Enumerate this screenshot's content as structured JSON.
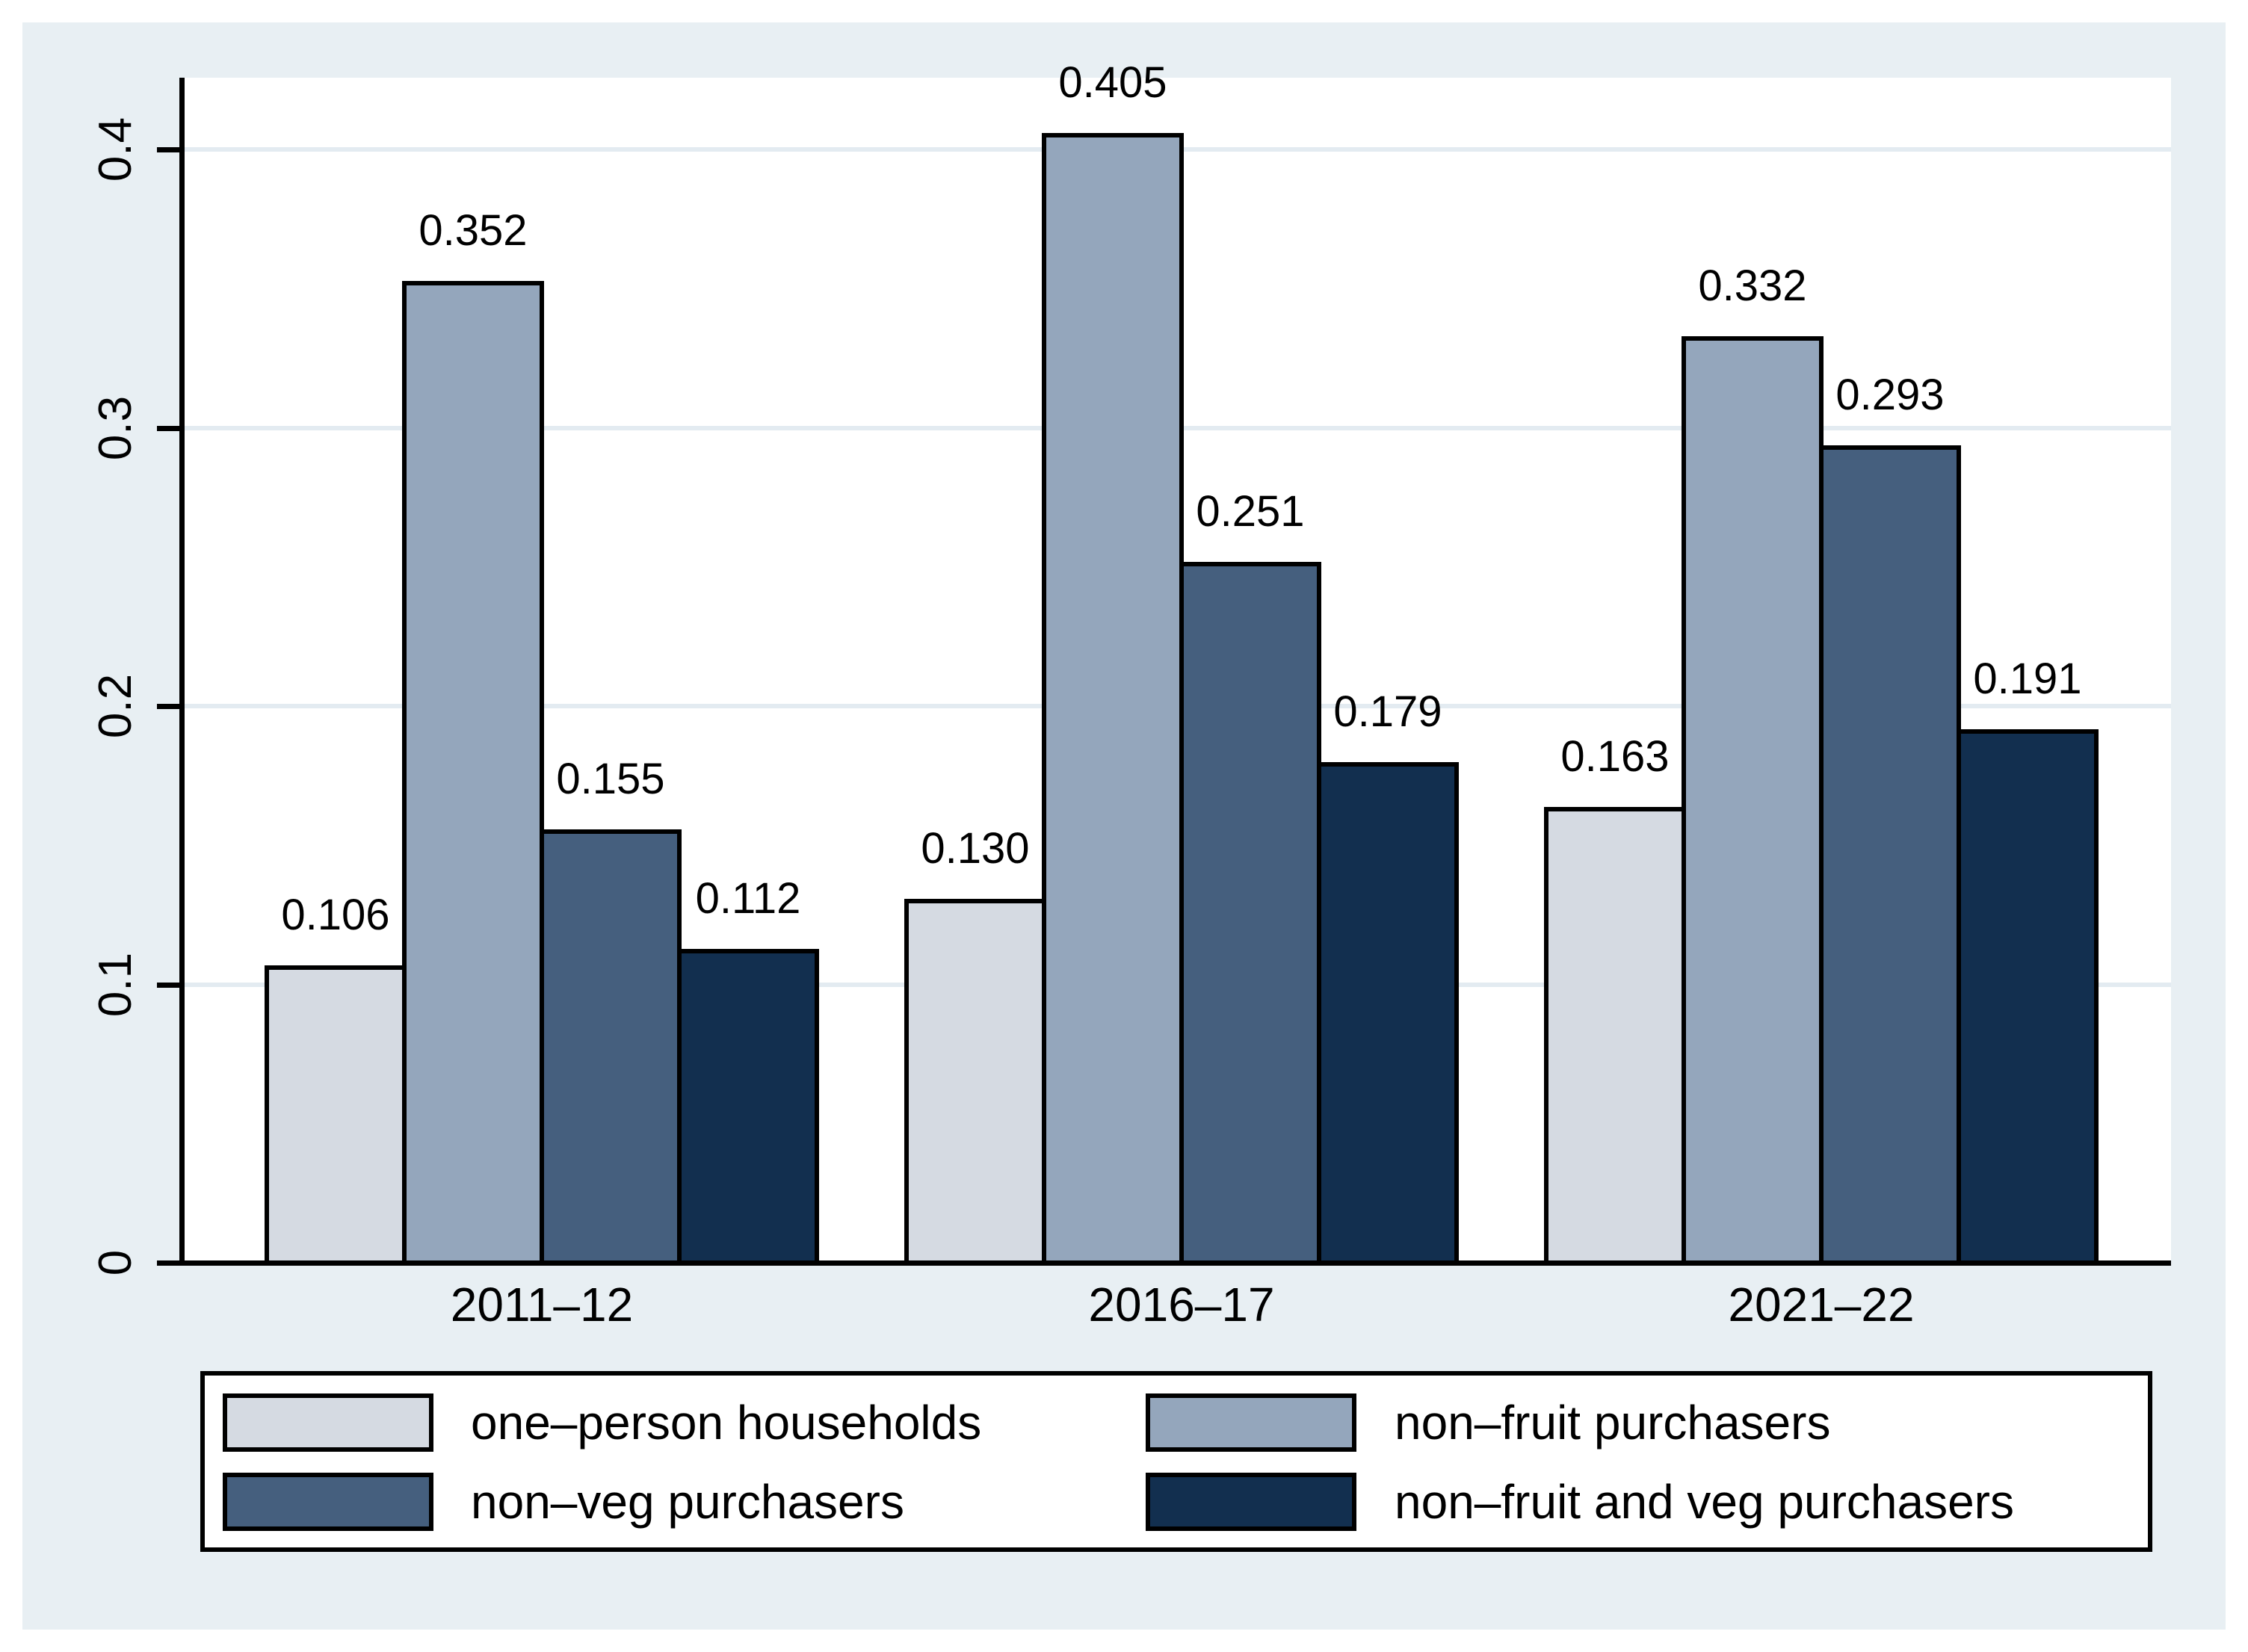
{
  "chart_data": {
    "type": "bar",
    "categories": [
      "2011–12",
      "2016–17",
      "2021–22"
    ],
    "series": [
      {
        "name": "one–person households",
        "color": "#d5dae2",
        "values": [
          0.106,
          0.13,
          0.163
        ]
      },
      {
        "name": "non–fruit purchasers",
        "color": "#94a6bc",
        "values": [
          0.352,
          0.405,
          0.332
        ]
      },
      {
        "name": "non–veg purchasers",
        "color": "#455f7e",
        "values": [
          0.155,
          0.251,
          0.293
        ]
      },
      {
        "name": "non–fruit and veg purchasers",
        "color": "#122f4f",
        "values": [
          0.112,
          0.179,
          0.191
        ]
      }
    ],
    "value_labels": [
      [
        "0.106",
        "0.352",
        "0.155",
        "0.112"
      ],
      [
        "0.130",
        "0.405",
        "0.251",
        "0.179"
      ],
      [
        "0.163",
        "0.332",
        "0.293",
        "0.191"
      ]
    ],
    "y_axis": {
      "tick_values": [
        0,
        0.1,
        0.2,
        0.3,
        0.4
      ],
      "tick_labels": [
        "0",
        "0.1",
        "0.2",
        "0.3",
        "0.4"
      ],
      "ylim": [
        0,
        0.425
      ],
      "grid": true
    },
    "legend": {
      "position": "bottom",
      "columns": 2,
      "entries": [
        "one–person households",
        "non–fruit purchasers",
        "non–veg purchasers",
        "non–fruit and veg purchasers"
      ]
    },
    "colors": {
      "page_background": "#ffffff",
      "panel_background": "#e8eff3",
      "plot_background": "#ffffff",
      "grid_line": "#e3ebf1",
      "axis_line": "#000000",
      "bar_border": "#000000",
      "text": "#000000",
      "legend_background": "#ffffff",
      "legend_border": "#000000"
    }
  }
}
